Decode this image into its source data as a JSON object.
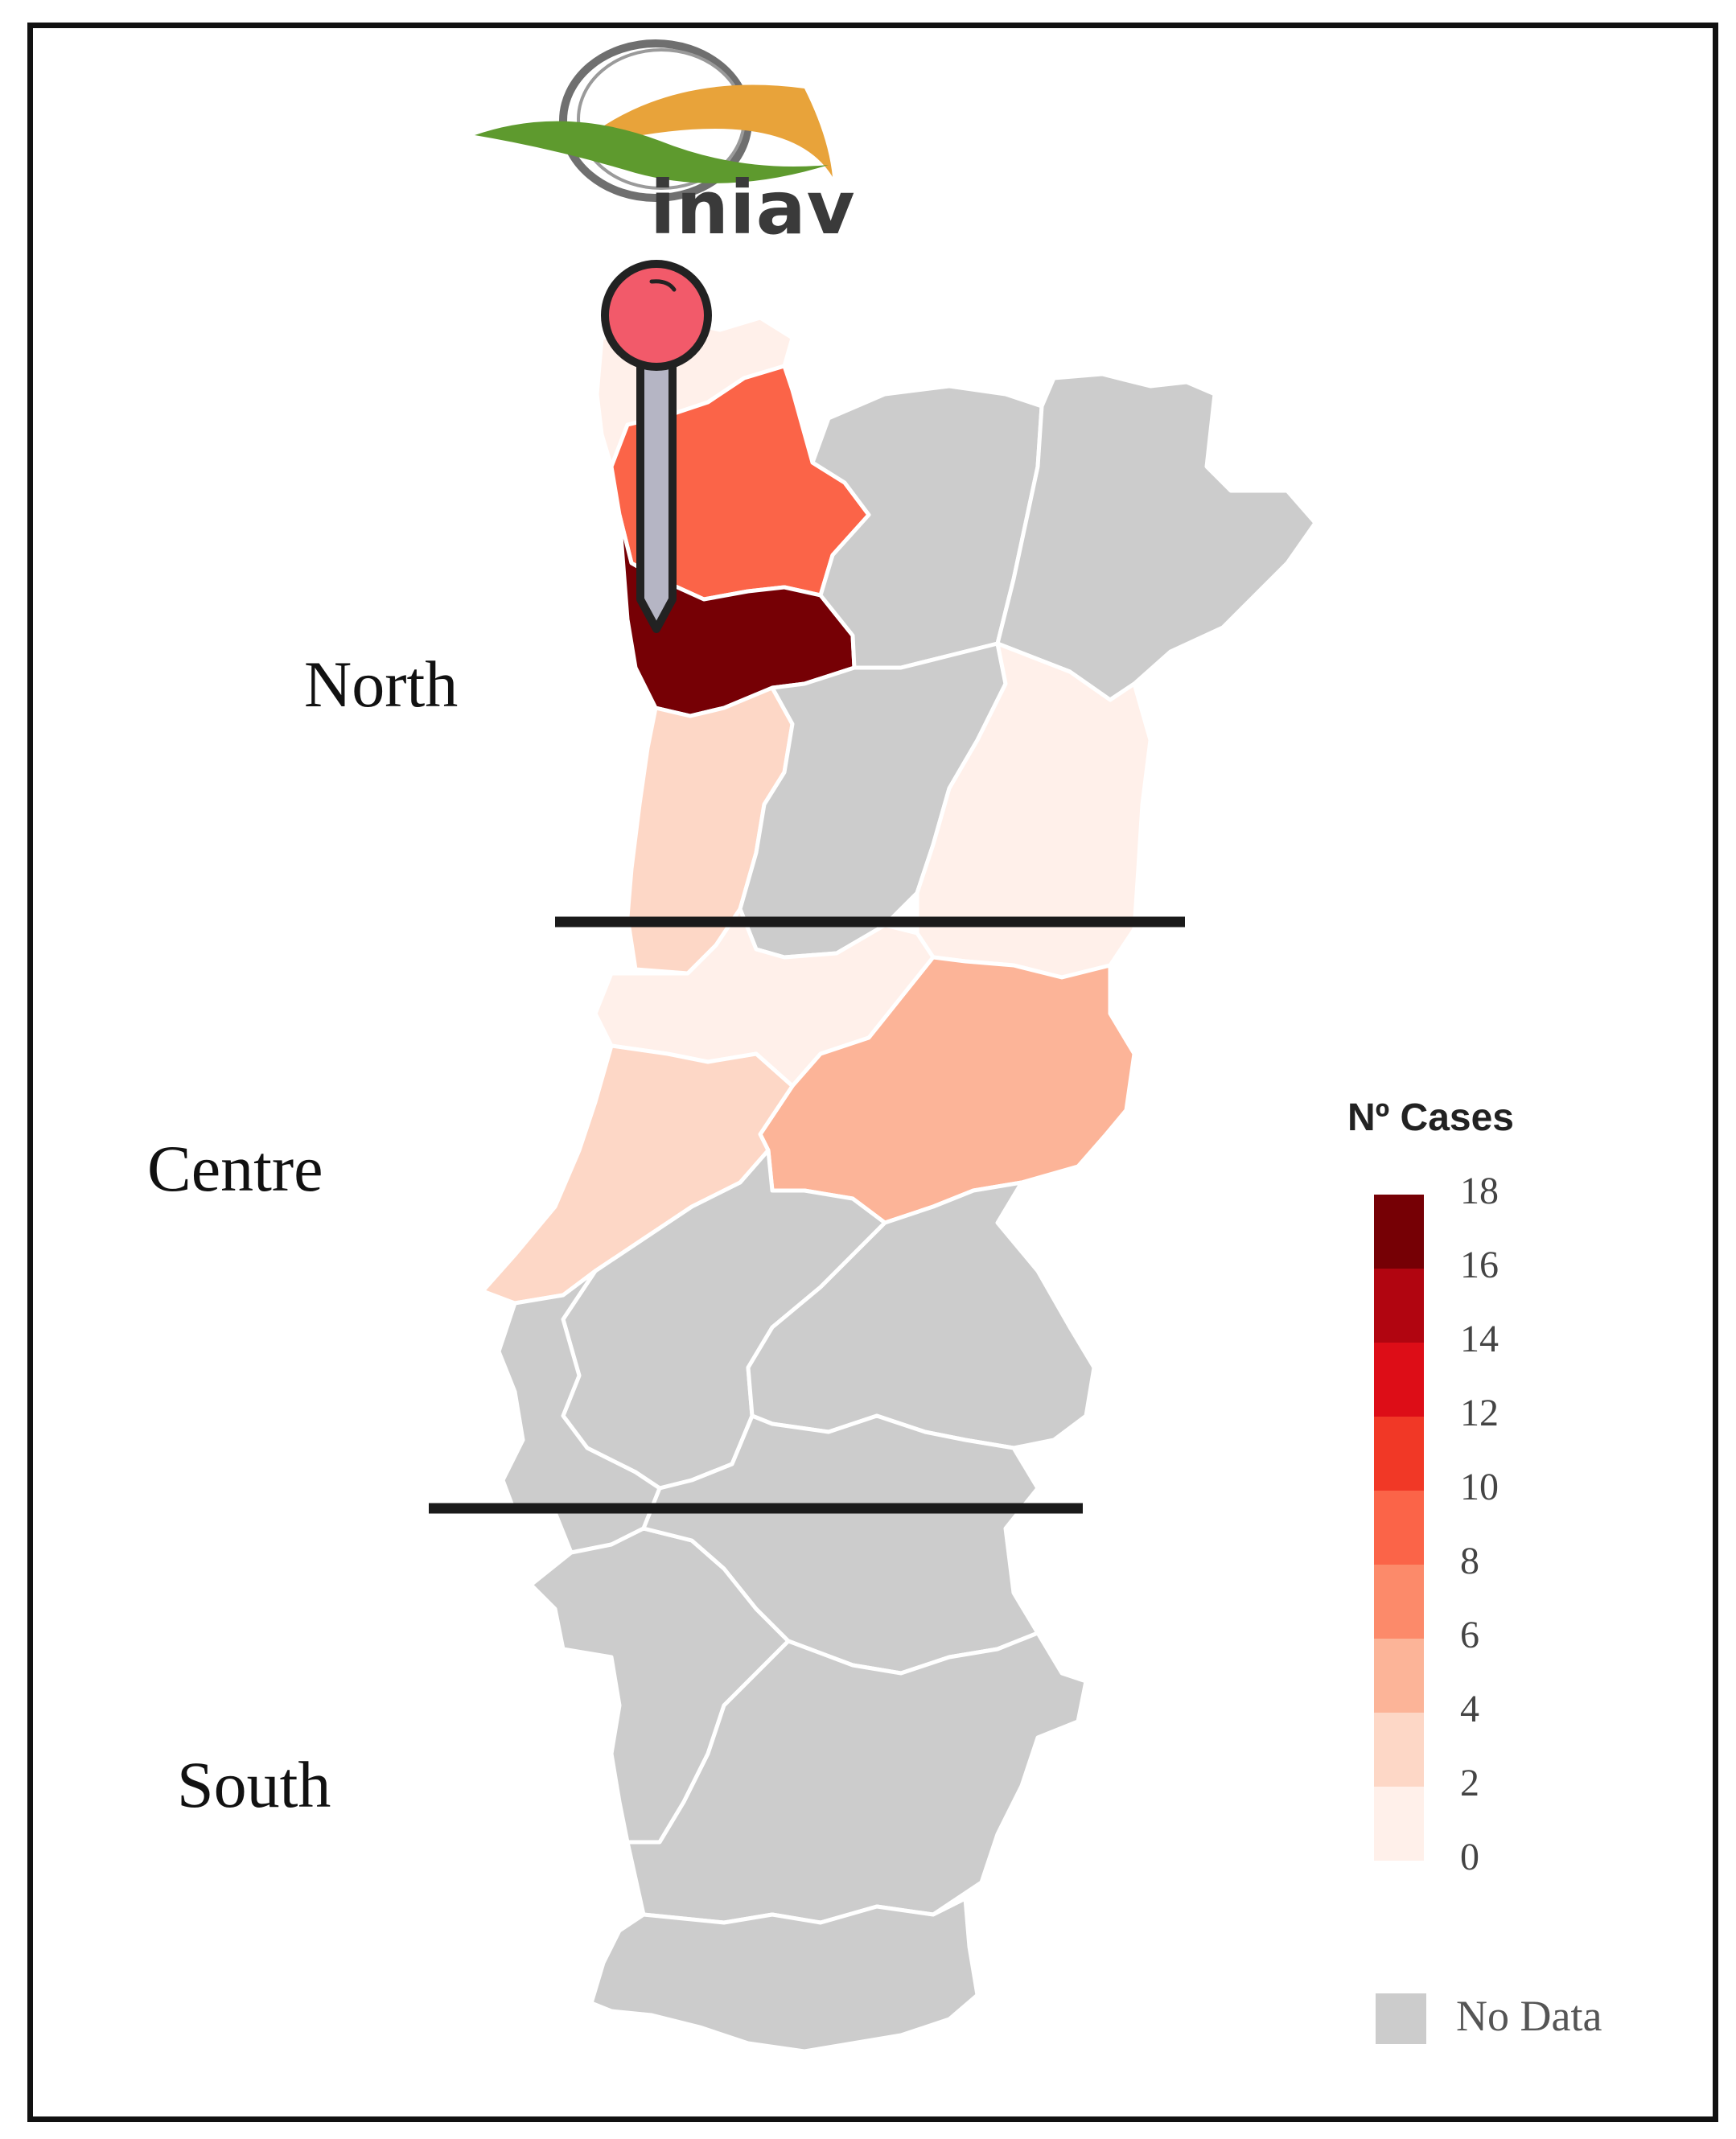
{
  "logo": {
    "text": "iniav",
    "colors": {
      "green": "#5e9a2e",
      "orange": "#e8a33a",
      "ring": "#6f6f6f"
    }
  },
  "map": {
    "country": "Portugal",
    "no_data_color": "#cccccc",
    "border_color": "#ffffff",
    "divider_color": "#1a1a1a",
    "pin": {
      "head_color": "#f25a6a",
      "shaft_color": "#b5b5c4",
      "outline_color": "#222222"
    },
    "regions": [
      {
        "id": "viana-do-castelo",
        "cases": 1
      },
      {
        "id": "braga",
        "cases": 8
      },
      {
        "id": "porto",
        "cases": 18
      },
      {
        "id": "aveiro",
        "cases": 3
      },
      {
        "id": "guarda",
        "cases": 1
      },
      {
        "id": "coimbra",
        "cases": 1
      },
      {
        "id": "castelo-branco",
        "cases": 5
      },
      {
        "id": "leiria",
        "cases": 3
      },
      {
        "id": "vila-real",
        "cases": null
      },
      {
        "id": "braganca",
        "cases": null
      },
      {
        "id": "viseu",
        "cases": null
      },
      {
        "id": "santarem",
        "cases": null
      },
      {
        "id": "portalegre",
        "cases": null
      },
      {
        "id": "lisboa",
        "cases": null
      },
      {
        "id": "setubal",
        "cases": null
      },
      {
        "id": "evora",
        "cases": null
      },
      {
        "id": "beja",
        "cases": null
      },
      {
        "id": "faro",
        "cases": null
      }
    ]
  },
  "zones": [
    "North",
    "Centre",
    "South"
  ],
  "legend": {
    "title": "Nº Cases",
    "ticks": [
      "18",
      "16",
      "14",
      "12",
      "10",
      "8",
      "6",
      "4",
      "2",
      "0"
    ],
    "scale_colors": [
      "#760005",
      "#b10510",
      "#dd0d17",
      "#f13826",
      "#fb6448",
      "#fc8a6a",
      "#fcb498",
      "#fdd7c6",
      "#fff0ea"
    ],
    "no_data_label": "No Data",
    "no_data_color": "#cccccc"
  }
}
